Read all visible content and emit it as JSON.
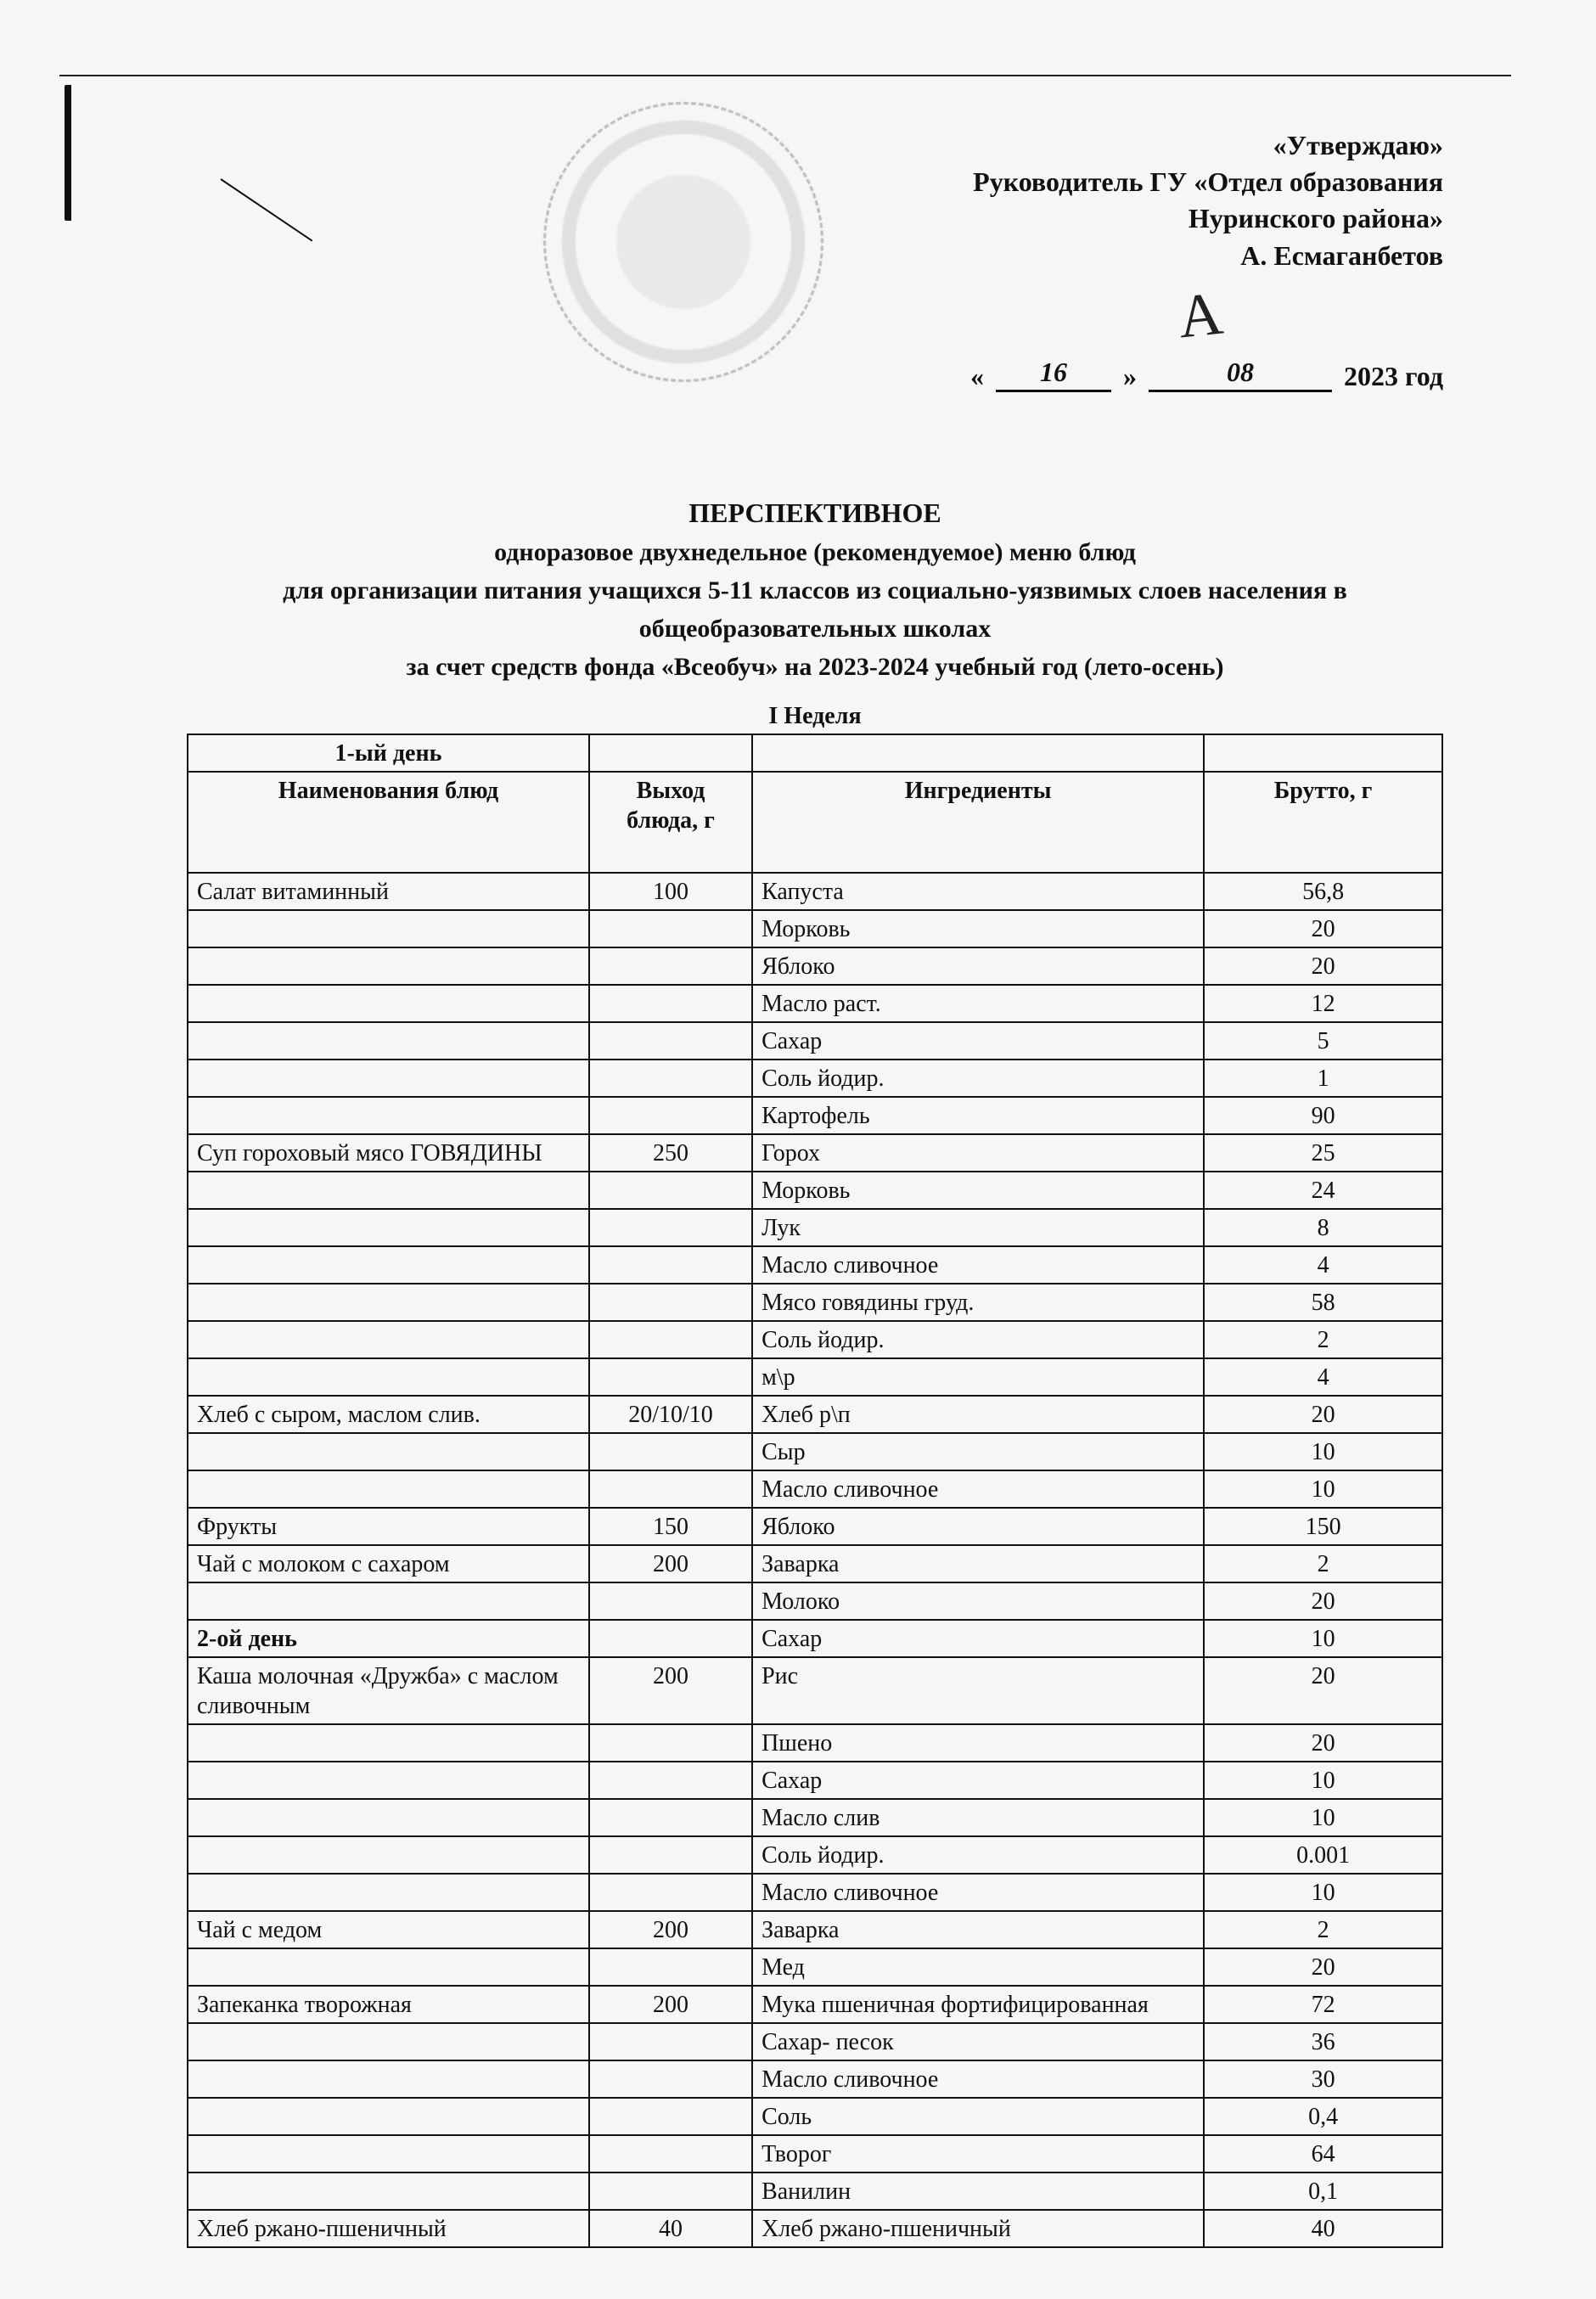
{
  "header": {
    "approve": "«Утверждаю»",
    "line2": "Руководитель ГУ «Отдел образования",
    "line3": "Нуринского района»",
    "director": "А. Есмаганбетов",
    "date_day": "16",
    "date_month": "08",
    "date_year": "2023 год"
  },
  "title": {
    "t1": "ПЕРСПЕКТИВНОЕ",
    "t2": "одноразовое двухнедельное (рекомендуемое) меню блюд",
    "t3": "для организации питания учащихся 5-11 классов из социально-уязвимых слоев населения в",
    "t4": "общеобразовательных школах",
    "t5": "за счет средств фонда «Всеобуч» на 2023-2024 учебный год (лето-осень)"
  },
  "table": {
    "week": "I Неделя",
    "day1": "1-ый день",
    "day2": "2-ой день",
    "h_name": "Наименования блюд",
    "h_yield": "Выход блюда, г",
    "h_ingr": "Ингредиенты",
    "h_brutto": "Брутто, г",
    "rows": [
      {
        "name": "Салат витаминный",
        "yield": "100",
        "ingr": "Капуста",
        "brutto": "56,8"
      },
      {
        "name": "",
        "yield": "",
        "ingr": "Морковь",
        "brutto": "20"
      },
      {
        "name": "",
        "yield": "",
        "ingr": "Яблоко",
        "brutto": "20"
      },
      {
        "name": "",
        "yield": "",
        "ingr": "Масло раст.",
        "brutto": "12"
      },
      {
        "name": "",
        "yield": "",
        "ingr": "Сахар",
        "brutto": "5"
      },
      {
        "name": "",
        "yield": "",
        "ingr": "Соль йодир.",
        "brutto": "1"
      },
      {
        "name": "",
        "yield": "",
        "ingr": "Картофель",
        "brutto": "90"
      },
      {
        "name": "Суп гороховый мясо ГОВЯДИНЫ",
        "yield": "250",
        "ingr": "Горох",
        "brutto": "25"
      },
      {
        "name": "",
        "yield": "",
        "ingr": "Морковь",
        "brutto": "24"
      },
      {
        "name": "",
        "yield": "",
        "ingr": "Лук",
        "brutto": "8"
      },
      {
        "name": "",
        "yield": "",
        "ingr": "Масло сливочное",
        "brutto": "4"
      },
      {
        "name": "",
        "yield": "",
        "ingr": "Мясо говядины груд.",
        "brutto": "58"
      },
      {
        "name": "",
        "yield": "",
        "ingr": "Соль йодир.",
        "brutto": "2"
      },
      {
        "name": "",
        "yield": "",
        "ingr": "м\\р",
        "brutto": "4"
      },
      {
        "name": "Хлеб с сыром, маслом слив.",
        "yield": "20/10/10",
        "ingr": "Хлеб р\\п",
        "brutto": "20"
      },
      {
        "name": "",
        "yield": "",
        "ingr": "Сыр",
        "brutto": "10"
      },
      {
        "name": "",
        "yield": "",
        "ingr": "Масло сливочное",
        "brutto": "10"
      },
      {
        "name": "Фрукты",
        "yield": "150",
        "ingr": "Яблоко",
        "brutto": "150"
      },
      {
        "name": "Чай с молоком с сахаром",
        "yield": "200",
        "ingr": "Заварка",
        "brutto": "2"
      },
      {
        "name": "",
        "yield": "",
        "ingr": "Молоко",
        "brutto": "20"
      },
      {
        "name": "2-ой день",
        "yield": "",
        "ingr": "Сахар",
        "brutto": "10",
        "dayhdr": true
      },
      {
        "name": "Каша молочная «Дружба» с маслом сливочным",
        "yield": "200",
        "ingr": "Рис",
        "brutto": "20"
      },
      {
        "name": "",
        "yield": "",
        "ingr": "Пшено",
        "brutto": "20"
      },
      {
        "name": "",
        "yield": "",
        "ingr": "Сахар",
        "brutto": "10"
      },
      {
        "name": "",
        "yield": "",
        "ingr": "Масло слив",
        "brutto": "10"
      },
      {
        "name": "",
        "yield": "",
        "ingr": "Соль йодир.",
        "brutto": "0.001"
      },
      {
        "name": "",
        "yield": "",
        "ingr": "Масло сливочное",
        "brutto": "10"
      },
      {
        "name": "Чай с медом",
        "yield": "200",
        "ingr": "Заварка",
        "brutto": "2"
      },
      {
        "name": "",
        "yield": "",
        "ingr": "Мед",
        "brutto": "20"
      },
      {
        "name": "Запеканка творожная",
        "yield": "200",
        "ingr": "Мука пшеничная фортифицированная",
        "brutto": "72"
      },
      {
        "name": "",
        "yield": "",
        "ingr": "Сахар- песок",
        "brutto": "36"
      },
      {
        "name": "",
        "yield": "",
        "ingr": "Масло сливочное",
        "brutto": "30"
      },
      {
        "name": "",
        "yield": "",
        "ingr": "Соль",
        "brutto": "0,4"
      },
      {
        "name": "",
        "yield": "",
        "ingr": "Творог",
        "brutto": "64"
      },
      {
        "name": "",
        "yield": "",
        "ingr": "Ванилин",
        "brutto": "0,1"
      },
      {
        "name": "Хлеб ржано-пшеничный",
        "yield": "40",
        "ingr": "Хлеб ржано-пшеничный",
        "brutto": "40"
      }
    ]
  },
  "colors": {
    "page_bg": "#f6f6f4",
    "text": "#111111",
    "stamp": "#9aa3a8",
    "border": "#111111"
  }
}
